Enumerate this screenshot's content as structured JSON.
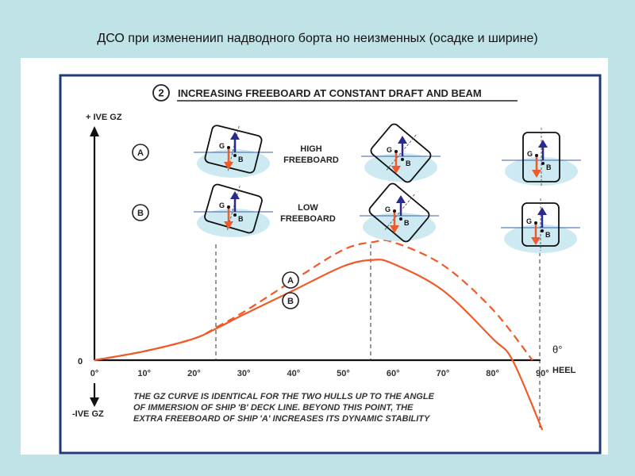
{
  "slide_title": "ДСО при изменениип надводного борта но неизменных (осадке и ширине)",
  "diagram": {
    "number": "2",
    "heading": "INCREASING FREEBOARD AT CONSTANT DRAFT AND BEAM",
    "y_axis_positive": "+ IVE GZ",
    "y_axis_negative": "-IVE GZ",
    "y_zero": "0",
    "x_axis_symbol": "θ°",
    "x_axis_label": "HEEL",
    "ticks": [
      "0°",
      "10°",
      "20°",
      "30°",
      "40°",
      "50°",
      "60°",
      "70°",
      "80°",
      "90°"
    ],
    "row_a": {
      "badge": "A",
      "label_line1": "HIGH",
      "label_line2": "FREEBOARD"
    },
    "row_b": {
      "badge": "B",
      "label_line1": "LOW",
      "label_line2": "FREEBOARD"
    },
    "curve_a_badge": "A",
    "curve_b_badge": "B",
    "ship_label_g": "G",
    "ship_label_b": "B",
    "note_lines": [
      "THE GZ CURVE IS IDENTICAL FOR THE TWO HULLS UP TO THE ANGLE",
      "OF IMMERSION OF SHIP 'B' DECK LINE. BEYOND THIS POINT, THE",
      "EXTRA FREEBOARD OF SHIP 'A' INCREASES ITS DYNAMIC STABILITY"
    ],
    "colors": {
      "curve": "#f05a28",
      "weight_arrow": "#f05a28",
      "buoyancy_arrow": "#2a2a8c",
      "water": "#cde9f2"
    }
  },
  "chart_data": {
    "type": "line",
    "x_unit": "degrees",
    "xlim": [
      0,
      90
    ],
    "series": [
      {
        "name": "A",
        "style": "dashed",
        "x": [
          0,
          10,
          20,
          25,
          30,
          40,
          50,
          56,
          60,
          70,
          80,
          88
        ],
        "y": [
          0,
          0.07,
          0.17,
          0.27,
          0.38,
          0.63,
          0.87,
          0.93,
          0.93,
          0.75,
          0.4,
          0
        ]
      },
      {
        "name": "B",
        "style": "solid",
        "x": [
          0,
          10,
          20,
          25,
          30,
          40,
          50,
          56,
          60,
          70,
          80,
          84,
          90
        ],
        "y": [
          0,
          0.07,
          0.17,
          0.26,
          0.36,
          0.55,
          0.74,
          0.79,
          0.76,
          0.55,
          0.17,
          0,
          -0.55
        ]
      }
    ],
    "reference_lines_deg": [
      25,
      56,
      89
    ]
  }
}
